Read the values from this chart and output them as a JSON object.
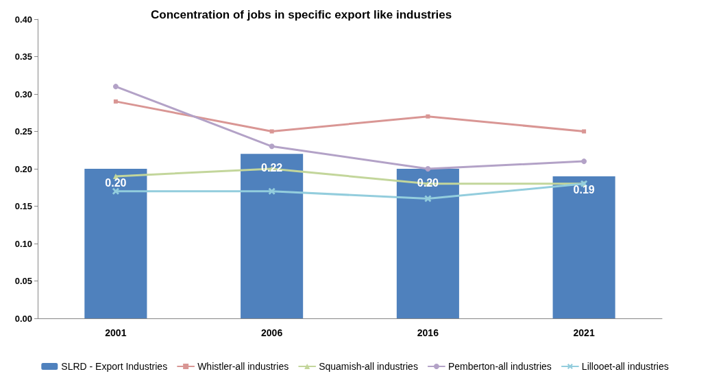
{
  "chart_data": {
    "type": "bar",
    "title": "Concentration of jobs in specific export like industries",
    "categories": [
      "2001",
      "2006",
      "2016",
      "2021"
    ],
    "series": [
      {
        "name": "SLRD - Export Industries",
        "color": "#4f81bd",
        "values": [
          0.2,
          0.22,
          0.2,
          0.19
        ],
        "value_labels": [
          "0.20",
          "0.22",
          "0.20",
          "0.19"
        ]
      },
      {
        "name": "Whistler-all industries",
        "type": "line",
        "color": "#d99694",
        "marker": "square",
        "values": [
          0.29,
          0.25,
          0.27,
          0.25
        ]
      },
      {
        "name": "Squamish-all industries",
        "type": "line",
        "color": "#c3d69b",
        "marker": "triangle",
        "values": [
          0.19,
          0.2,
          0.18,
          0.18
        ]
      },
      {
        "name": "Pemberton-all industries",
        "type": "line",
        "color": "#b3a2c7",
        "marker": "circle",
        "values": [
          0.31,
          0.23,
          0.2,
          0.21
        ]
      },
      {
        "name": "Lillooet-all industries",
        "type": "line",
        "color": "#93cddd",
        "marker": "cross",
        "values": [
          0.17,
          0.17,
          0.16,
          0.18
        ]
      }
    ],
    "ylim": [
      0,
      0.4
    ],
    "yticks": [
      {
        "value": 0,
        "label": "0.00"
      },
      {
        "value": 0.05,
        "label": "0.05"
      },
      {
        "value": 0.1,
        "label": "0.10"
      },
      {
        "value": 0.15,
        "label": "0.15"
      },
      {
        "value": 0.2,
        "label": "0.20"
      },
      {
        "value": 0.25,
        "label": "0.25"
      },
      {
        "value": 0.3,
        "label": "0.30"
      },
      {
        "value": 0.35,
        "label": "0.35"
      },
      {
        "value": 0.4,
        "label": "0.40"
      }
    ],
    "grid": false,
    "legend": "bottom"
  }
}
